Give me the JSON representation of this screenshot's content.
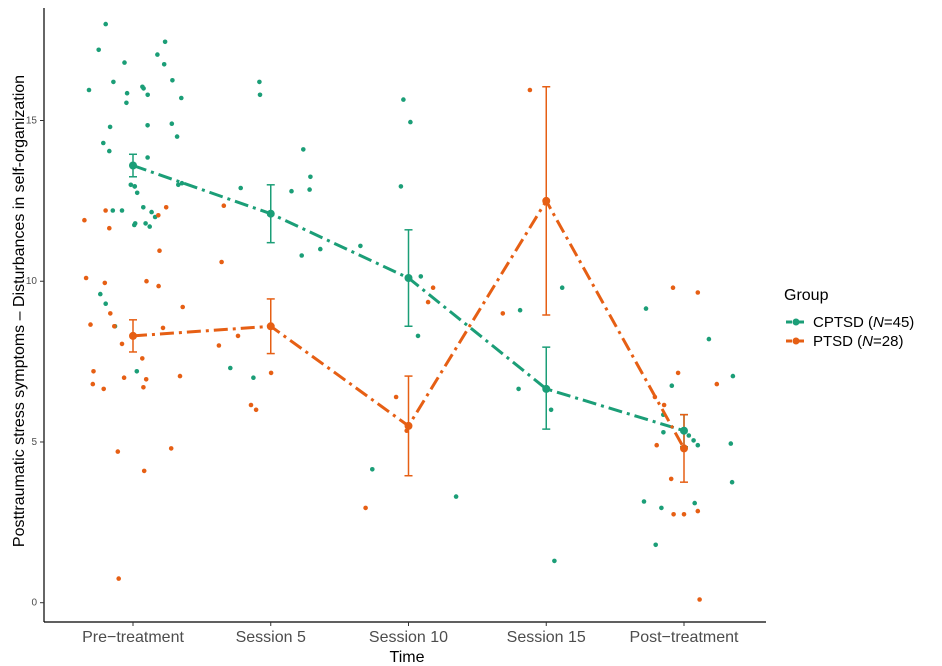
{
  "chart_data": {
    "type": "scatter",
    "xlabel": "Time",
    "ylabel": "Posttraumatic stress symptoms – Disturbances in self-organization",
    "categories": [
      "Pre−treatment",
      "Session 5",
      "Session 10",
      "Session 15",
      "Post−treatment"
    ],
    "yticks": [
      0,
      5,
      10,
      15
    ],
    "ylim": [
      -0.6,
      18.5
    ],
    "grid": false,
    "legend": {
      "title": "Group",
      "placement": "right",
      "entries": [
        {
          "name": "CPTSD",
          "n_prefix": "N",
          "n_value": "=45",
          "color": "#1b9e77"
        },
        {
          "name": "PTSD",
          "n_prefix": "N",
          "n_value": "=28",
          "color": "#e65f14"
        }
      ]
    },
    "series": [
      {
        "name": "CPTSD (N=45)",
        "color": "#1b9e77",
        "means": [
          13.6,
          12.1,
          10.1,
          6.65,
          5.35
        ],
        "ci_low": [
          13.25,
          11.2,
          8.6,
          5.4,
          4.85
        ],
        "ci_high": [
          13.95,
          13.0,
          11.6,
          7.95,
          5.85
        ],
        "points": [
          [
            1,
            18.0
          ],
          [
            1,
            17.45
          ],
          [
            1,
            17.2
          ],
          [
            1,
            17.05
          ],
          [
            1,
            16.8
          ],
          [
            1,
            16.75
          ],
          [
            1,
            16.25
          ],
          [
            1,
            16.2
          ],
          [
            1,
            16.05
          ],
          [
            1,
            16.0
          ],
          [
            1,
            15.95
          ],
          [
            1,
            15.85
          ],
          [
            1,
            15.8
          ],
          [
            1,
            15.7
          ],
          [
            1,
            15.55
          ],
          [
            1,
            14.9
          ],
          [
            1,
            14.85
          ],
          [
            1,
            14.8
          ],
          [
            1,
            14.5
          ],
          [
            1,
            14.3
          ],
          [
            1,
            14.05
          ],
          [
            1,
            13.85
          ],
          [
            1,
            13.05
          ],
          [
            1,
            13.0
          ],
          [
            1,
            13.0
          ],
          [
            1,
            12.95
          ],
          [
            1,
            12.95
          ],
          [
            1,
            12.75
          ],
          [
            1,
            12.3
          ],
          [
            1,
            12.2
          ],
          [
            1,
            12.2
          ],
          [
            1,
            12.15
          ],
          [
            1,
            12.0
          ],
          [
            1,
            11.8
          ],
          [
            1,
            11.8
          ],
          [
            1,
            11.75
          ],
          [
            1,
            11.7
          ],
          [
            1,
            9.6
          ],
          [
            1,
            9.3
          ],
          [
            1,
            8.6
          ],
          [
            1,
            7.2
          ],
          [
            2,
            16.2
          ],
          [
            2,
            15.8
          ],
          [
            2,
            14.1
          ],
          [
            2,
            13.25
          ],
          [
            2,
            12.9
          ],
          [
            2,
            12.85
          ],
          [
            2,
            12.8
          ],
          [
            2,
            11.0
          ],
          [
            2,
            10.8
          ],
          [
            2,
            7.3
          ],
          [
            2,
            7.0
          ],
          [
            3,
            15.65
          ],
          [
            3,
            14.95
          ],
          [
            3,
            12.95
          ],
          [
            3,
            11.1
          ],
          [
            3,
            10.15
          ],
          [
            3,
            8.3
          ],
          [
            3,
            4.15
          ],
          [
            3,
            3.3
          ],
          [
            4,
            9.8
          ],
          [
            4,
            9.1
          ],
          [
            4,
            6.65
          ],
          [
            4,
            6.0
          ],
          [
            4,
            1.3
          ],
          [
            5,
            9.15
          ],
          [
            5,
            8.2
          ],
          [
            5,
            7.05
          ],
          [
            5,
            6.75
          ],
          [
            5,
            5.85
          ],
          [
            5,
            5.3
          ],
          [
            5,
            5.2
          ],
          [
            5,
            5.05
          ],
          [
            5,
            4.95
          ],
          [
            5,
            4.9
          ],
          [
            5,
            3.75
          ],
          [
            5,
            3.15
          ],
          [
            5,
            3.1
          ],
          [
            5,
            2.95
          ],
          [
            5,
            1.8
          ]
        ]
      },
      {
        "name": "PTSD (N=28)",
        "color": "#e65f14",
        "means": [
          8.3,
          8.6,
          5.5,
          12.5,
          4.8
        ],
        "ci_low": [
          7.8,
          7.75,
          3.95,
          8.95,
          3.75
        ],
        "ci_high": [
          8.8,
          9.45,
          7.05,
          16.05,
          5.85
        ],
        "points": [
          [
            1,
            12.3
          ],
          [
            1,
            12.2
          ],
          [
            1,
            12.05
          ],
          [
            1,
            11.9
          ],
          [
            1,
            11.65
          ],
          [
            1,
            10.95
          ],
          [
            1,
            10.1
          ],
          [
            1,
            10.0
          ],
          [
            1,
            9.95
          ],
          [
            1,
            9.85
          ],
          [
            1,
            9.2
          ],
          [
            1,
            9.0
          ],
          [
            1,
            8.65
          ],
          [
            1,
            8.6
          ],
          [
            1,
            8.55
          ],
          [
            1,
            8.05
          ],
          [
            1,
            7.6
          ],
          [
            1,
            7.2
          ],
          [
            1,
            7.05
          ],
          [
            1,
            7.0
          ],
          [
            1,
            6.95
          ],
          [
            1,
            6.8
          ],
          [
            1,
            6.7
          ],
          [
            1,
            6.65
          ],
          [
            1,
            4.8
          ],
          [
            1,
            4.7
          ],
          [
            1,
            4.1
          ],
          [
            1,
            0.75
          ],
          [
            2,
            12.35
          ],
          [
            2,
            10.6
          ],
          [
            2,
            8.3
          ],
          [
            2,
            8.0
          ],
          [
            2,
            7.15
          ],
          [
            2,
            6.15
          ],
          [
            2,
            6.0
          ],
          [
            3,
            9.8
          ],
          [
            3,
            9.35
          ],
          [
            3,
            6.4
          ],
          [
            3,
            5.35
          ],
          [
            3,
            2.95
          ],
          [
            4,
            15.95
          ],
          [
            4,
            9.0
          ],
          [
            5,
            9.8
          ],
          [
            5,
            9.65
          ],
          [
            5,
            7.15
          ],
          [
            5,
            6.8
          ],
          [
            5,
            6.4
          ],
          [
            5,
            6.15
          ],
          [
            5,
            4.9
          ],
          [
            5,
            3.85
          ],
          [
            5,
            2.85
          ],
          [
            5,
            2.75
          ],
          [
            5,
            2.75
          ],
          [
            5,
            0.1
          ]
        ]
      }
    ]
  }
}
